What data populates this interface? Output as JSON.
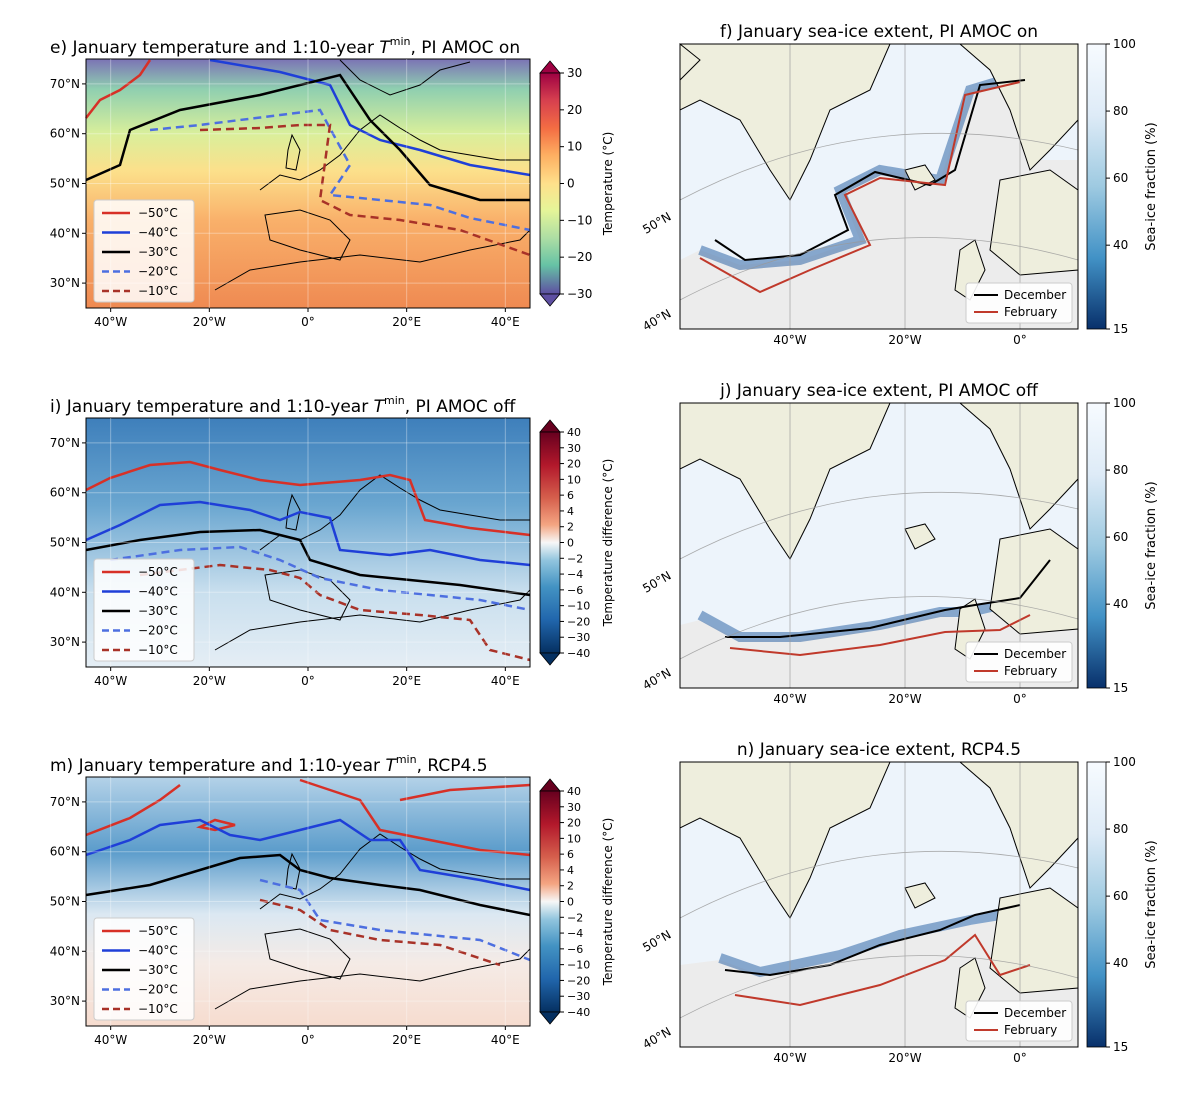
{
  "figure": {
    "temp_legend": [
      {
        "label": "−50°C",
        "color": "#d73027",
        "dash": false
      },
      {
        "label": "−40°C",
        "color": "#1f3fd8",
        "dash": false
      },
      {
        "label": "−30°C",
        "color": "#000000",
        "dash": false
      },
      {
        "label": "−20°C",
        "color": "#4d6fe0",
        "dash": true
      },
      {
        "label": "−10°C",
        "color": "#a83228",
        "dash": true
      }
    ],
    "ice_legend": [
      {
        "label": "December",
        "color": "#000000"
      },
      {
        "label": "February",
        "color": "#c0392b"
      }
    ],
    "temp_panels": [
      {
        "title_pre": "e) January temperature and 1:10-year ",
        "title_sym": "T",
        "title_sup": "min",
        "title_post": ", PI AMOC on",
        "cbar_label": "Temperature (°C)",
        "cbar_ticks": [
          "30",
          "20",
          "10",
          "0",
          "−10",
          "−20",
          "−30"
        ],
        "lat_ticks": [
          "70°N",
          "60°N",
          "50°N",
          "40°N",
          "30°N"
        ],
        "lon_ticks": [
          "40°W",
          "20°W",
          "0°",
          "20°E",
          "40°E"
        ]
      },
      {
        "title_pre": "i) January temperature and 1:10-year ",
        "title_sym": "T",
        "title_sup": "min",
        "title_post": ", PI AMOC off",
        "cbar_label": "Temperature difference (°C)",
        "cbar_ticks": [
          "40",
          "30",
          "20",
          "10",
          "6",
          "4",
          "2",
          "0",
          "−2",
          "−4",
          "−6",
          "−10",
          "−20",
          "−30",
          "−40"
        ],
        "lat_ticks": [
          "70°N",
          "60°N",
          "50°N",
          "40°N",
          "30°N"
        ],
        "lon_ticks": [
          "40°W",
          "20°W",
          "0°",
          "20°E",
          "40°E"
        ]
      },
      {
        "title_pre": "m) January temperature and 1:10-year ",
        "title_sym": "T",
        "title_sup": "min",
        "title_post": ", RCP4.5",
        "cbar_label": "Temperature difference (°C)",
        "cbar_ticks": [
          "40",
          "30",
          "20",
          "10",
          "6",
          "4",
          "2",
          "0",
          "−2",
          "−4",
          "−6",
          "−10",
          "−20",
          "−30",
          "−40"
        ],
        "lat_ticks": [
          "70°N",
          "60°N",
          "50°N",
          "40°N",
          "30°N"
        ],
        "lon_ticks": [
          "40°W",
          "20°W",
          "0°",
          "20°E",
          "40°E"
        ]
      }
    ],
    "ice_panels": [
      {
        "title": "f) January sea-ice extent, PI AMOC on",
        "cbar_label": "Sea-ice fraction (%)",
        "cbar_ticks": [
          "100",
          "80",
          "60",
          "40",
          "15"
        ],
        "lat_ticks": [
          "50°N",
          "40°N"
        ],
        "lon_ticks": [
          "40°W",
          "20°W",
          "0°"
        ]
      },
      {
        "title": "j) January sea-ice extent, PI AMOC off",
        "cbar_label": "Sea-ice fraction (%)",
        "cbar_ticks": [
          "100",
          "80",
          "60",
          "40",
          "15"
        ],
        "lat_ticks": [
          "50°N",
          "40°N"
        ],
        "lon_ticks": [
          "40°W",
          "20°W",
          "0°"
        ]
      },
      {
        "title": "n) January sea-ice extent, RCP4.5",
        "cbar_label": "Sea-ice fraction (%)",
        "cbar_ticks": [
          "100",
          "80",
          "60",
          "40",
          "15"
        ],
        "lat_ticks": [
          "50°N",
          "40°N"
        ],
        "lon_ticks": [
          "40°W",
          "20°W",
          "0°"
        ]
      }
    ],
    "colors": {
      "land": "#eeeedd",
      "ice_water": "#ececec",
      "ice_dark": "#0d3b7a"
    }
  },
  "chart_data": [
    {
      "type": "heatmap",
      "title": "e) January temperature and 1:10-year T^min, PI AMOC on",
      "xlim": [
        -45,
        45
      ],
      "ylim": [
        25,
        75
      ],
      "colorbar": {
        "label": "Temperature (°C)",
        "range": [
          -30,
          30
        ],
        "colormap": "Spectral_r"
      },
      "contours": [
        "−50°C",
        "−40°C",
        "−30°C",
        "−20°C",
        "−10°C"
      ],
      "legend": "lower-left"
    },
    {
      "type": "heatmap",
      "title": "i) January temperature and 1:10-year T^min, PI AMOC off",
      "xlim": [
        -45,
        45
      ],
      "ylim": [
        25,
        75
      ],
      "colorbar": {
        "label": "Temperature difference (°C)",
        "range": [
          -40,
          40
        ],
        "colormap": "RdBu_r"
      },
      "contours": [
        "−50°C",
        "−40°C",
        "−30°C",
        "−20°C",
        "−10°C"
      ],
      "legend": "lower-left"
    },
    {
      "type": "heatmap",
      "title": "m) January temperature and 1:10-year T^min, RCP4.5",
      "xlim": [
        -45,
        45
      ],
      "ylim": [
        25,
        75
      ],
      "colorbar": {
        "label": "Temperature difference (°C)",
        "range": [
          -40,
          40
        ],
        "colormap": "RdBu_r"
      },
      "contours": [
        "−50°C",
        "−40°C",
        "−30°C",
        "−20°C",
        "−10°C"
      ],
      "legend": "lower-left"
    },
    {
      "type": "heatmap",
      "title": "f) January sea-ice extent, PI AMOC on",
      "colorbar": {
        "label": "Sea-ice fraction (%)",
        "range": [
          15,
          100
        ],
        "colormap": "Blues_r"
      },
      "lines": [
        "December",
        "February"
      ],
      "legend": "lower-right"
    },
    {
      "type": "heatmap",
      "title": "j) January sea-ice extent, PI AMOC off",
      "colorbar": {
        "label": "Sea-ice fraction (%)",
        "range": [
          15,
          100
        ],
        "colormap": "Blues_r"
      },
      "lines": [
        "December",
        "February"
      ],
      "legend": "lower-right"
    },
    {
      "type": "heatmap",
      "title": "n) January sea-ice extent, RCP4.5",
      "colorbar": {
        "label": "Sea-ice fraction (%)",
        "range": [
          15,
          100
        ],
        "colormap": "Blues_r"
      },
      "lines": [
        "December",
        "February"
      ],
      "legend": "lower-right"
    }
  ]
}
